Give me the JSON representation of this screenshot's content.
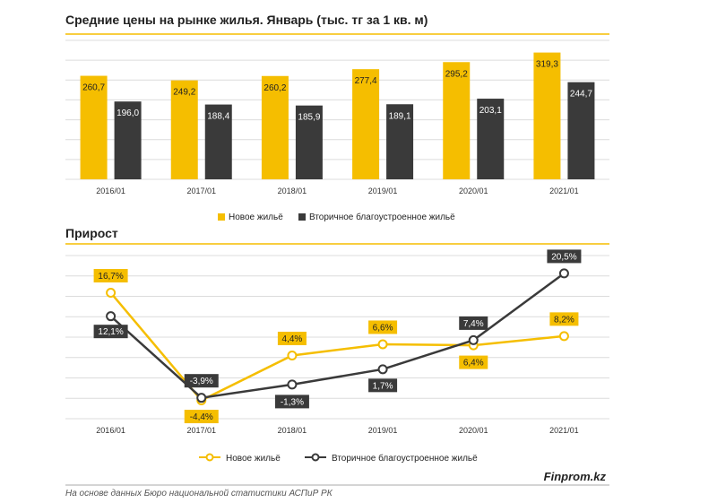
{
  "colors": {
    "new": "#F5BE00",
    "secondary": "#3A3A3A",
    "grid": "#dcdcdc",
    "rule": "#F5BE00"
  },
  "titles": {
    "top": "Средние цены на рынке жилья. Январь (тыс. тг за 1 кв. м)",
    "bottom": "Прирост"
  },
  "legend": {
    "new": "Новое жильё",
    "secondary": "Вторичное благоустроенное жильё"
  },
  "brand": "Finprom.kz",
  "source": "На основе данных Бюро национальной статистики АСПиР РК",
  "chart_data": [
    {
      "type": "bar",
      "title": "Средние цены на рынке жилья. Январь (тыс. тг за 1 кв. м)",
      "categories": [
        "2016/01",
        "2017/01",
        "2018/01",
        "2019/01",
        "2020/01",
        "2021/01"
      ],
      "series": [
        {
          "name": "Новое жильё",
          "values": [
            260.7,
            249.2,
            260.2,
            277.4,
            295.2,
            319.3
          ],
          "labels": [
            "260,7",
            "249,2",
            "260,2",
            "277,4",
            "295,2",
            "319,3"
          ]
        },
        {
          "name": "Вторичное благоустроенное жильё",
          "values": [
            196.0,
            188.4,
            185.9,
            189.1,
            203.1,
            244.7
          ],
          "labels": [
            "196,0",
            "188,4",
            "185,9",
            "189,1",
            "203,1",
            "244,7"
          ]
        }
      ],
      "ylim": [
        0,
        350
      ],
      "grid": true,
      "legend_position": "bottom"
    },
    {
      "type": "line",
      "title": "Прирост",
      "categories": [
        "2016/01",
        "2017/01",
        "2018/01",
        "2019/01",
        "2020/01",
        "2021/01"
      ],
      "series": [
        {
          "name": "Новое жильё",
          "values": [
            16.7,
            -4.4,
            4.4,
            6.6,
            6.4,
            8.2
          ],
          "labels": [
            "16,7%",
            "-4,4%",
            "4,4%",
            "6,6%",
            "6,4%",
            "8,2%"
          ]
        },
        {
          "name": "Вторичное благоустроенное жильё",
          "values": [
            12.1,
            -3.9,
            -1.3,
            1.7,
            7.4,
            20.5
          ],
          "labels": [
            "12,1%",
            "-3,9%",
            "-1,3%",
            "1,7%",
            "7,4%",
            "20,5%"
          ]
        }
      ],
      "ylim": [
        -8,
        24
      ],
      "grid": true,
      "legend_position": "bottom"
    }
  ]
}
